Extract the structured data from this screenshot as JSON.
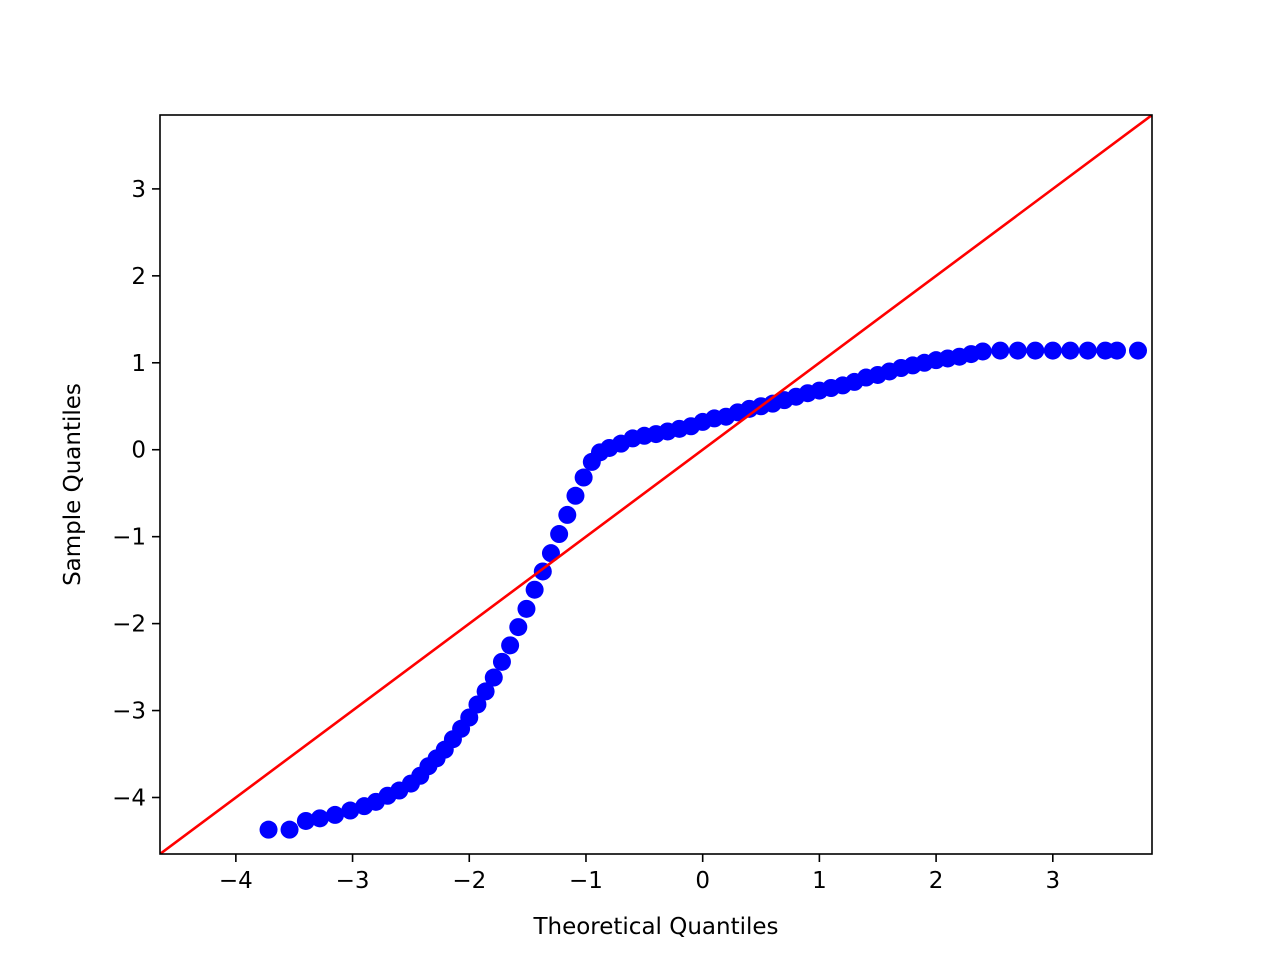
{
  "chart_data": {
    "type": "scatter",
    "title": "",
    "xlabel": "Theoretical Quantiles",
    "ylabel": "Sample Quantiles",
    "xlim": [
      -4.65,
      3.85
    ],
    "ylim": [
      -4.65,
      3.85
    ],
    "x_ticks": [
      {
        "value": -4,
        "label": "−4"
      },
      {
        "value": -3,
        "label": "−3"
      },
      {
        "value": -2,
        "label": "−2"
      },
      {
        "value": -1,
        "label": "−1"
      },
      {
        "value": 0,
        "label": "0"
      },
      {
        "value": 1,
        "label": "1"
      },
      {
        "value": 2,
        "label": "2"
      },
      {
        "value": 3,
        "label": "3"
      }
    ],
    "y_ticks": [
      {
        "value": -4,
        "label": "−4"
      },
      {
        "value": -3,
        "label": "−3"
      },
      {
        "value": -2,
        "label": "−2"
      },
      {
        "value": -1,
        "label": "−1"
      },
      {
        "value": 0,
        "label": "0"
      },
      {
        "value": 1,
        "label": "1"
      },
      {
        "value": 2,
        "label": "2"
      },
      {
        "value": 3,
        "label": "3"
      }
    ],
    "grid": false,
    "legend": "none",
    "series": [
      {
        "kind": "scatter",
        "color": "#0000ff",
        "points": [
          [
            -3.72,
            -4.37
          ],
          [
            -3.54,
            -4.37
          ],
          [
            -3.4,
            -4.27
          ],
          [
            -3.28,
            -4.24
          ],
          [
            -3.15,
            -4.2
          ],
          [
            -3.02,
            -4.15
          ],
          [
            -2.9,
            -4.1
          ],
          [
            -2.8,
            -4.05
          ],
          [
            -2.7,
            -3.98
          ],
          [
            -2.6,
            -3.92
          ],
          [
            -2.5,
            -3.84
          ],
          [
            -2.42,
            -3.75
          ],
          [
            -2.35,
            -3.64
          ],
          [
            -2.28,
            -3.55
          ],
          [
            -2.21,
            -3.45
          ],
          [
            -2.14,
            -3.33
          ],
          [
            -2.07,
            -3.21
          ],
          [
            -2.0,
            -3.08
          ],
          [
            -1.93,
            -2.93
          ],
          [
            -1.86,
            -2.78
          ],
          [
            -1.79,
            -2.62
          ],
          [
            -1.72,
            -2.44
          ],
          [
            -1.65,
            -2.25
          ],
          [
            -1.58,
            -2.04
          ],
          [
            -1.51,
            -1.83
          ],
          [
            -1.44,
            -1.61
          ],
          [
            -1.37,
            -1.4
          ],
          [
            -1.3,
            -1.19
          ],
          [
            -1.23,
            -0.97
          ],
          [
            -1.16,
            -0.75
          ],
          [
            -1.09,
            -0.53
          ],
          [
            -1.02,
            -0.32
          ],
          [
            -0.95,
            -0.14
          ],
          [
            -0.88,
            -0.03
          ],
          [
            -0.8,
            0.02
          ],
          [
            -0.7,
            0.07
          ],
          [
            -0.6,
            0.13
          ],
          [
            -0.5,
            0.16
          ],
          [
            -0.4,
            0.18
          ],
          [
            -0.3,
            0.21
          ],
          [
            -0.2,
            0.24
          ],
          [
            -0.1,
            0.27
          ],
          [
            0.0,
            0.32
          ],
          [
            0.1,
            0.36
          ],
          [
            0.2,
            0.38
          ],
          [
            0.3,
            0.43
          ],
          [
            0.4,
            0.47
          ],
          [
            0.5,
            0.5
          ],
          [
            0.6,
            0.53
          ],
          [
            0.7,
            0.57
          ],
          [
            0.8,
            0.61
          ],
          [
            0.9,
            0.65
          ],
          [
            1.0,
            0.68
          ],
          [
            1.1,
            0.71
          ],
          [
            1.2,
            0.74
          ],
          [
            1.3,
            0.78
          ],
          [
            1.4,
            0.83
          ],
          [
            1.5,
            0.86
          ],
          [
            1.6,
            0.9
          ],
          [
            1.7,
            0.94
          ],
          [
            1.8,
            0.97
          ],
          [
            1.9,
            1.0
          ],
          [
            2.0,
            1.03
          ],
          [
            2.1,
            1.05
          ],
          [
            2.2,
            1.07
          ],
          [
            2.3,
            1.1
          ],
          [
            2.4,
            1.13
          ],
          [
            2.55,
            1.14
          ],
          [
            2.7,
            1.14
          ],
          [
            2.85,
            1.14
          ],
          [
            3.0,
            1.14
          ],
          [
            3.15,
            1.14
          ],
          [
            3.3,
            1.14
          ],
          [
            3.45,
            1.14
          ],
          [
            3.55,
            1.14
          ],
          [
            3.73,
            1.14
          ]
        ]
      },
      {
        "kind": "line",
        "color": "#ff0000",
        "points": [
          [
            -4.65,
            -4.65
          ],
          [
            3.85,
            3.85
          ]
        ]
      }
    ]
  }
}
